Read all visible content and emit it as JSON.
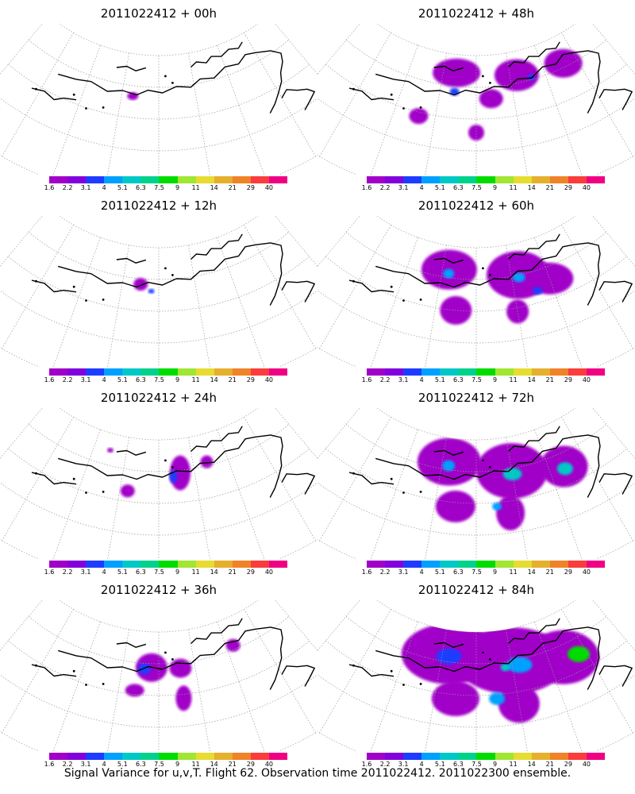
{
  "panels": [
    {
      "title": "2011022412 + 00h",
      "intensity": 0
    },
    {
      "title": "2011022412 + 48h",
      "intensity": 4
    },
    {
      "title": "2011022412 + 12h",
      "intensity": 1
    },
    {
      "title": "2011022412 + 60h",
      "intensity": 5
    },
    {
      "title": "2011022412 + 24h",
      "intensity": 2
    },
    {
      "title": "2011022412 + 72h",
      "intensity": 6
    },
    {
      "title": "2011022412 + 36h",
      "intensity": 3
    },
    {
      "title": "2011022412 + 84h",
      "intensity": 7
    }
  ],
  "legend": {
    "labels": [
      "1.6",
      "2.2",
      "3.1",
      "4",
      "5.1",
      "6.3",
      "7.5",
      "9",
      "11",
      "14",
      "21",
      "29",
      "40"
    ],
    "colors": [
      "#a000c8",
      "#8200dc",
      "#1e3cff",
      "#00a0ff",
      "#00c8c8",
      "#00d28c",
      "#00dc00",
      "#a0e632",
      "#e6dc32",
      "#e6af2d",
      "#f08228",
      "#fa3c3c",
      "#f00082"
    ]
  },
  "footer": "Signal Variance for u,v,T. Flight 62. Observation time 2011022412. 2011022300 ensemble."
}
